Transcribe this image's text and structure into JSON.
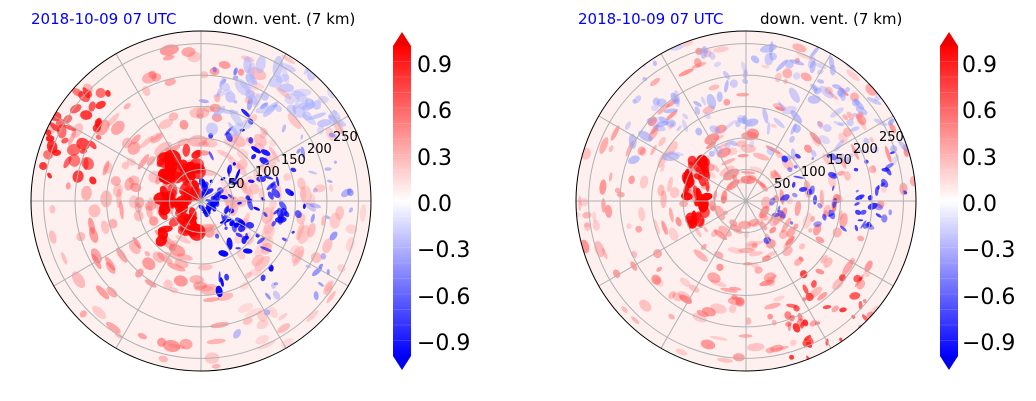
{
  "chart_data": [
    {
      "type": "heatmap",
      "projection": "polar",
      "title_left": "2018-10-09 07 UTC",
      "title_right": "down. vent. (7 km)",
      "radial_ticks": [
        50,
        100,
        150,
        200,
        250
      ],
      "azimuth_gridlines_deg": [
        0,
        30,
        60,
        90,
        120,
        150,
        180,
        210,
        240,
        270,
        300,
        330
      ],
      "colorbar": {
        "ticks": [
          "−0.9",
          "−0.6",
          "−0.3",
          "0.0",
          "0.3",
          "0.6",
          "0.9"
        ],
        "tick_values": [
          -0.9,
          -0.6,
          -0.3,
          0.0,
          0.3,
          0.6,
          0.9
        ],
        "range": [
          -1.0,
          1.0
        ],
        "colormap": "bwr",
        "extend": "both"
      },
      "colors": {
        "positive": "#ff0000",
        "negative": "#0000ff",
        "neutral": "#ffffff"
      }
    },
    {
      "type": "heatmap",
      "projection": "polar",
      "title_left": "2018-10-09 07 UTC",
      "title_right": "down. vent. (7 km)",
      "radial_ticks": [
        50,
        100,
        150,
        200,
        250
      ],
      "azimuth_gridlines_deg": [
        0,
        30,
        60,
        90,
        120,
        150,
        180,
        210,
        240,
        270,
        300,
        330
      ],
      "colorbar": {
        "ticks": [
          "−0.9",
          "−0.6",
          "−0.3",
          "0.0",
          "0.3",
          "0.6",
          "0.9"
        ],
        "tick_values": [
          -0.9,
          -0.6,
          -0.3,
          0.0,
          0.3,
          0.6,
          0.9
        ],
        "range": [
          -1.0,
          1.0
        ],
        "colormap": "bwr",
        "extend": "both"
      },
      "colors": {
        "positive": "#ff0000",
        "negative": "#0000ff",
        "neutral": "#ffffff"
      }
    }
  ]
}
